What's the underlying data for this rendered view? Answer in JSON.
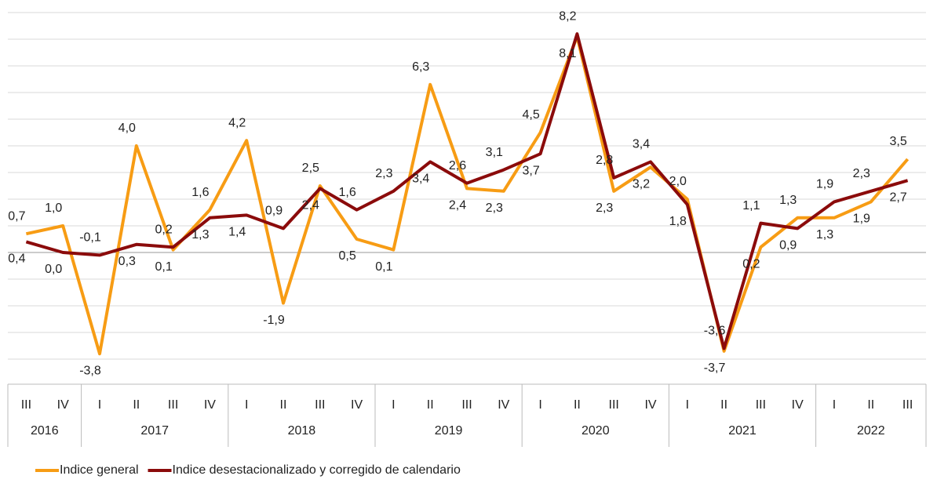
{
  "chart_data": {
    "type": "line",
    "categories": [
      "III",
      "IV",
      "I",
      "II",
      "III",
      "IV",
      "I",
      "II",
      "III",
      "IV",
      "I",
      "II",
      "III",
      "IV",
      "I",
      "II",
      "III",
      "IV",
      "I",
      "II",
      "III",
      "IV",
      "I",
      "II",
      "III"
    ],
    "groups": [
      {
        "name": "2016",
        "size": 2
      },
      {
        "name": "2017",
        "size": 4
      },
      {
        "name": "2018",
        "size": 4
      },
      {
        "name": "2019",
        "size": 4
      },
      {
        "name": "2020",
        "size": 4
      },
      {
        "name": "2021",
        "size": 4
      },
      {
        "name": "2022",
        "size": 3
      }
    ],
    "series": [
      {
        "name": "Indice general",
        "color": "#f79c14",
        "values": [
          0.7,
          1.0,
          -3.8,
          4.0,
          0.1,
          1.6,
          4.2,
          -1.9,
          2.5,
          0.5,
          0.1,
          6.3,
          2.4,
          2.3,
          4.5,
          8.1,
          2.3,
          3.2,
          2.0,
          -3.7,
          0.2,
          1.3,
          1.3,
          1.9,
          3.5
        ],
        "value_labels": [
          "0,7",
          "1,0",
          "-3,8",
          "4,0",
          "0,1",
          "1,6",
          "4,2",
          "-1,9",
          "2,5",
          "0,5",
          "0,1",
          "6,3",
          "2,4",
          "2,3",
          "4,5",
          "8,1",
          "2,3",
          "3,2",
          "2,0",
          "-3,7",
          "0,2",
          "1,3",
          "1,3",
          "1,9",
          "3,5"
        ]
      },
      {
        "name": "Indice desestacionalizado y corregido de calendario",
        "color": "#8b0b0b",
        "values": [
          0.4,
          0.0,
          -0.1,
          0.3,
          0.2,
          1.3,
          1.4,
          0.9,
          2.4,
          1.6,
          2.3,
          3.4,
          2.6,
          3.1,
          3.7,
          8.2,
          2.8,
          3.4,
          1.8,
          -3.6,
          1.1,
          0.9,
          1.9,
          2.3,
          2.7
        ],
        "value_labels": [
          "0,4",
          "0,0",
          "-0,1",
          "0,3",
          "0,2",
          "1,3",
          "1,4",
          "0,9",
          "2,4",
          "1,6",
          "2,3",
          "3,4",
          "2,6",
          "3,1",
          "3,7",
          "8,2",
          "2,8",
          "3,4",
          "1,8",
          "-3,6",
          "1,1",
          "0,9",
          "1,9",
          "2,3",
          "2,7"
        ]
      }
    ],
    "ylim": [
      -4,
      9
    ],
    "yticks": [
      -4,
      -3,
      -2,
      -1,
      0,
      1,
      2,
      3,
      4,
      5,
      6,
      7,
      8,
      9
    ],
    "grid": true,
    "legend": "bottom-left"
  }
}
